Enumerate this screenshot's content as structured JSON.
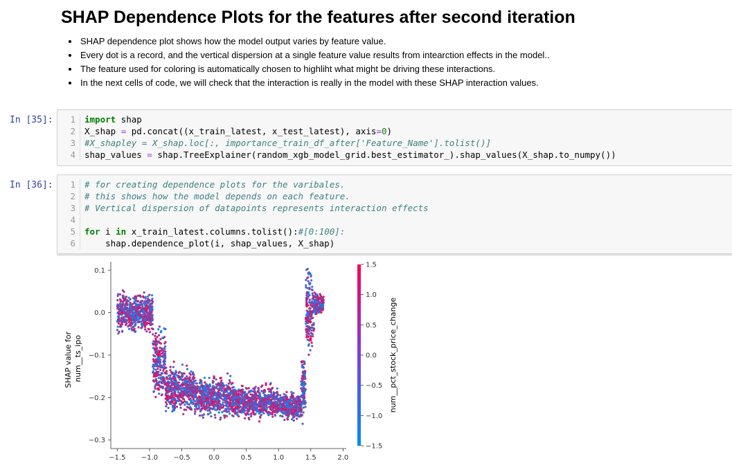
{
  "markdown": {
    "title": "SHAP Dependence Plots for the features after second iteration",
    "bullets": [
      "SHAP dependence plot shows how the model output varies by feature value.",
      "Every dot is a record, and the vertical dispersion at a single feature value results from intearction effects in the model..",
      "The feature used for coloring is automatically chosen to highliht what might be driving these interactions.",
      "In the next cells of code, we will check that the interaction is really in the model with these SHAP interaction values."
    ]
  },
  "cells": [
    {
      "prompt": "In [35]:",
      "lines": [
        {
          "n": "1",
          "code": "import shap"
        },
        {
          "n": "2",
          "code": "X_shap = pd.concat((x_train_latest, x_test_latest), axis=0)"
        },
        {
          "n": "3",
          "code": "#X_shapley = X_shap.loc[:, importance_train_df_after['Feature_Name'].tolist()]"
        },
        {
          "n": "4",
          "code": "shap_values = shap.TreeExplainer(random_xgb_model_grid.best_estimator_).shap_values(X_shap.to_numpy())"
        }
      ]
    },
    {
      "prompt": "In [36]:",
      "lines": [
        {
          "n": "1",
          "code": "# for creating dependence plots for the varibales."
        },
        {
          "n": "2",
          "code": "# this shows how the model depends on each feature."
        },
        {
          "n": "3",
          "code": "# Vertical dispersion of datapoints represents interaction effects"
        },
        {
          "n": "4",
          "code": ""
        },
        {
          "n": "5",
          "code": "for i in x_train_latest.columns.tolist():#[0:100]:"
        },
        {
          "n": "6",
          "code": "    shap.dependence_plot(i, shap_values, X_shap)"
        }
      ]
    }
  ],
  "chart_data": {
    "type": "scatter",
    "ylabel": "SHAP value for\nnum__ts_ipo",
    "xlabel": "",
    "xlim": [
      -1.6,
      2.05
    ],
    "ylim": [
      -0.32,
      0.12
    ],
    "xticks": [
      "−1.5",
      "−1.0",
      "−0.5",
      "0.0",
      "0.5",
      "1.0",
      "1.5",
      "2.0"
    ],
    "xtick_values": [
      -1.5,
      -1.0,
      -0.5,
      0.0,
      0.5,
      1.0,
      1.5,
      2.0
    ],
    "yticks": [
      "0.1",
      "0.0",
      "−0.1",
      "−0.2",
      "−0.3"
    ],
    "ytick_values": [
      0.1,
      0.0,
      -0.1,
      -0.2,
      -0.3
    ],
    "colorbar": {
      "label": "num__pct_stock_price_change",
      "ticks": [
        "1.5",
        "1.0",
        "0.5",
        "0.0",
        "−0.5",
        "−1.0",
        "−1.5"
      ],
      "tick_values": [
        1.5,
        1.0,
        0.5,
        0.0,
        -0.5,
        -1.0,
        -1.5
      ],
      "range": [
        -1.5,
        1.5
      ],
      "low_color": "#008afb",
      "high_color": "#ff0052"
    },
    "clusters": [
      {
        "x_range": [
          -1.5,
          -1.2
        ],
        "y_center": 0.0,
        "y_spread": 0.06
      },
      {
        "x_range": [
          -1.2,
          -0.95
        ],
        "y_center": 0.0,
        "y_spread": 0.055
      },
      {
        "x_range": [
          -0.95,
          -0.75
        ],
        "y_center": -0.12,
        "y_spread": 0.1
      },
      {
        "x_range": [
          -0.75,
          -0.3
        ],
        "y_center": -0.18,
        "y_spread": 0.07
      },
      {
        "x_range": [
          -0.3,
          0.3
        ],
        "y_center": -0.2,
        "y_spread": 0.06
      },
      {
        "x_range": [
          0.3,
          1.0
        ],
        "y_center": -0.21,
        "y_spread": 0.05
      },
      {
        "x_range": [
          1.0,
          1.35
        ],
        "y_center": -0.22,
        "y_spread": 0.04
      },
      {
        "x_range": [
          1.35,
          1.42
        ],
        "y_center": -0.18,
        "y_spread": 0.1
      },
      {
        "x_range": [
          1.42,
          1.55
        ],
        "y_center": 0.0,
        "y_spread": 0.13
      },
      {
        "x_range": [
          1.55,
          1.7
        ],
        "y_center": 0.02,
        "y_spread": 0.03
      }
    ]
  }
}
